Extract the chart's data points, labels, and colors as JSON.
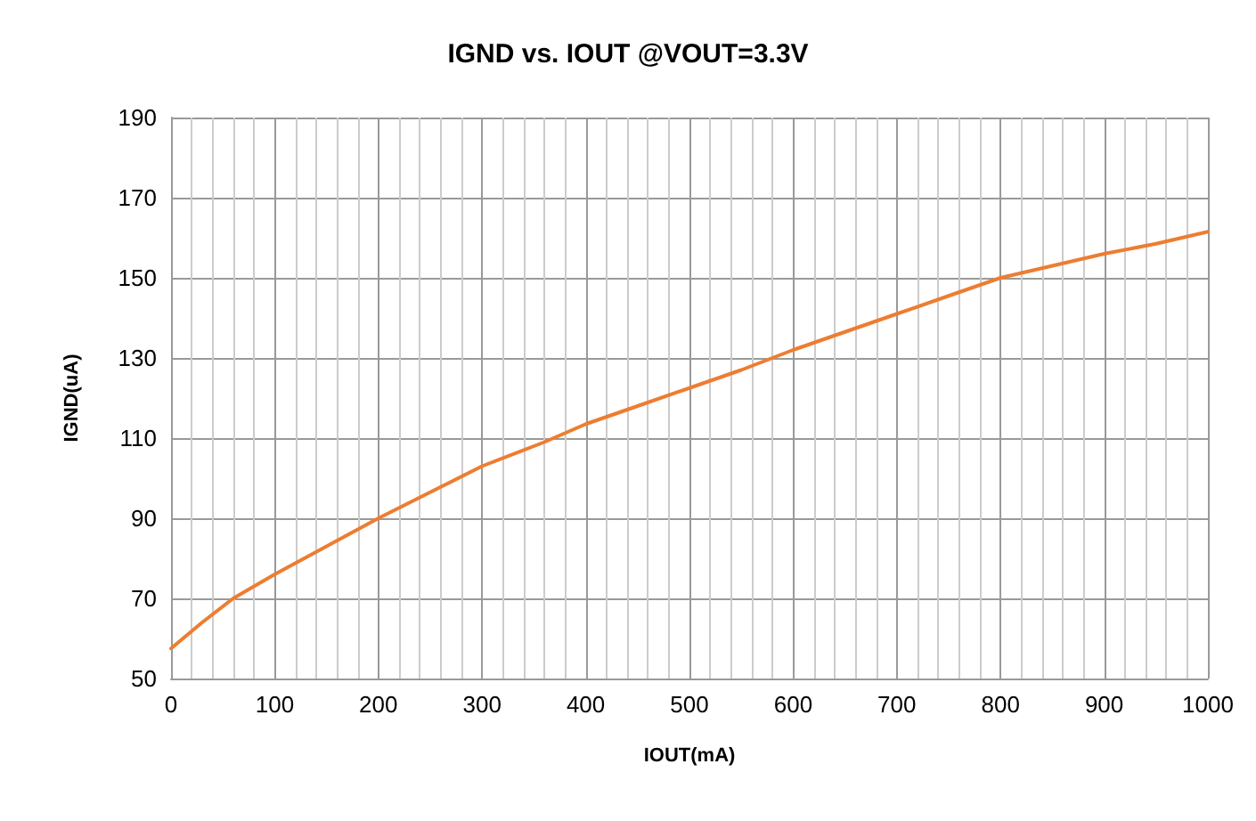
{
  "chart_data": {
    "type": "line",
    "title": "IGND vs. IOUT @VOUT=3.3V",
    "xlabel": "IOUT(mA)",
    "ylabel": "IGND(uA)",
    "series": [
      {
        "color": "#ed7d31",
        "x": [
          0,
          30,
          60,
          100,
          150,
          200,
          250,
          300,
          360,
          400,
          450,
          500,
          550,
          600,
          650,
          700,
          750,
          800,
          850,
          900,
          950,
          1000
        ],
        "values": [
          57.5,
          64,
          70,
          76,
          83,
          90,
          96.5,
          103,
          109,
          113.5,
          118,
          122.5,
          127,
          132,
          136.5,
          141,
          145.5,
          150,
          153,
          156,
          158.5,
          161.5
        ]
      }
    ],
    "xlim": [
      0,
      1000
    ],
    "xticks": [
      0,
      100,
      200,
      300,
      400,
      500,
      600,
      700,
      800,
      900,
      1000
    ],
    "ylim": [
      50,
      190
    ],
    "yticks": [
      50,
      70,
      90,
      110,
      130,
      150,
      170,
      190
    ],
    "grid": true,
    "marker": "none",
    "line_style": "solid"
  }
}
